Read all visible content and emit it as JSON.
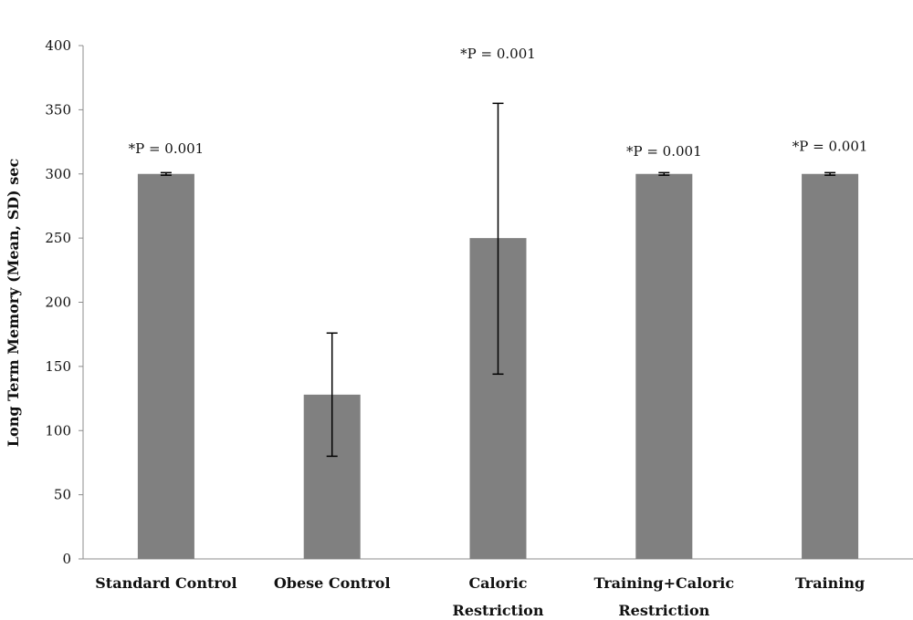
{
  "chart_data": {
    "type": "bar",
    "title": "",
    "xlabel": "",
    "ylabel": "Long Term Memory (Mean, SD) sec",
    "ylim": [
      0,
      400
    ],
    "yticks": [
      0,
      50,
      100,
      150,
      200,
      250,
      300,
      350,
      400
    ],
    "grid": false,
    "legend": "none",
    "bar_color": "#808080",
    "categories": [
      [
        "Standard Control"
      ],
      [
        "Obese Control"
      ],
      [
        "Caloric",
        "Restriction"
      ],
      [
        "Training+Caloric",
        "Restriction"
      ],
      [
        "Training"
      ]
    ],
    "values": [
      300,
      128,
      250,
      300,
      300
    ],
    "error_low": [
      299,
      80,
      144,
      299,
      299
    ],
    "error_high": [
      301,
      176,
      355,
      301,
      301
    ],
    "annotations": [
      "*P = 0.001",
      "",
      "*P = 0.001",
      "*P = 0.001",
      "*P = 0.001"
    ],
    "annotation_y": [
      316,
      null,
      390,
      314,
      318
    ]
  }
}
